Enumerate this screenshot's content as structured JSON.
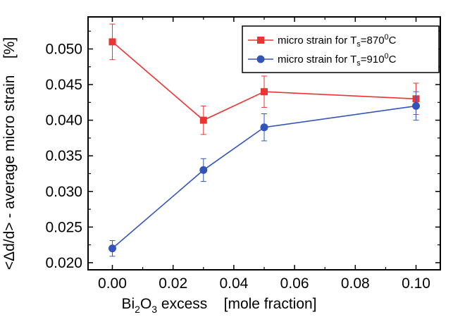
{
  "chart_data": {
    "type": "line",
    "x": [
      0.0,
      0.03,
      0.05,
      0.1
    ],
    "xlim": [
      -0.008,
      0.108
    ],
    "ylim": [
      0.019,
      0.0545
    ],
    "x_ticks": [
      "0.00",
      "0.02",
      "0.04",
      "0.06",
      "0.08",
      "0.10"
    ],
    "x_tick_values": [
      0.0,
      0.02,
      0.04,
      0.06,
      0.08,
      0.1
    ],
    "y_ticks": [
      "0.020",
      "0.025",
      "0.030",
      "0.035",
      "0.040",
      "0.045",
      "0.050"
    ],
    "y_tick_values": [
      0.02,
      0.025,
      0.03,
      0.035,
      0.04,
      0.045,
      0.05
    ],
    "xlabel": {
      "pre": "Bi",
      "sub1": "2",
      "mid": "O",
      "sub2": "3",
      "post": " excess    [mole fraction]"
    },
    "ylabel": "<Δd/d> - average micro strain    [%]",
    "legend_position": "top-right",
    "series": [
      {
        "name": {
          "pre": "micro strain for T",
          "sub": "s",
          "mid": "=870",
          "sup": "0",
          "post": "C"
        },
        "color": "#ee3333",
        "marker": "square",
        "values": [
          0.051,
          0.04,
          0.044,
          0.043
        ],
        "errors": [
          0.0025,
          0.002,
          0.0022,
          0.0022
        ]
      },
      {
        "name": {
          "pre": "micro strain for T",
          "sub": "s",
          "mid": "=910",
          "sup": "0",
          "post": "C"
        },
        "color": "#3355bb",
        "marker": "circle",
        "values": [
          0.022,
          0.033,
          0.039,
          0.042
        ],
        "errors": [
          0.0011,
          0.0016,
          0.0019,
          0.002
        ]
      }
    ]
  }
}
